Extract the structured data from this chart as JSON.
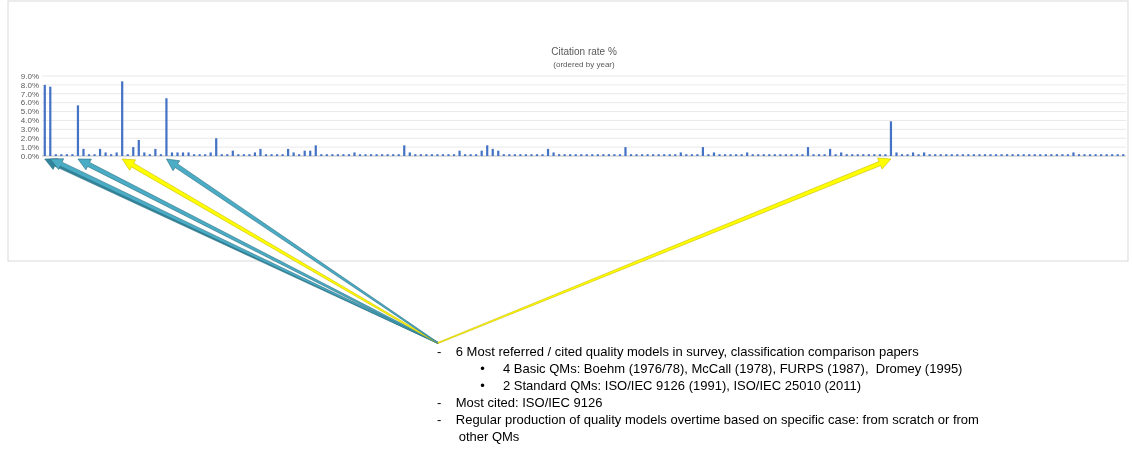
{
  "chart_data": {
    "type": "bar",
    "title": "Citation rate %",
    "subtitle": "(ordered by year)",
    "categories": [
      null,
      null,
      null,
      null,
      null,
      null,
      null,
      null,
      null,
      null,
      null,
      null,
      null,
      null,
      null,
      null,
      null,
      null,
      null,
      null,
      null,
      null,
      null,
      null,
      null,
      null,
      null,
      null,
      null,
      null,
      null,
      null,
      null,
      null,
      null,
      null,
      null,
      null,
      null,
      null,
      null,
      null,
      null,
      null,
      null,
      null,
      null,
      null,
      null,
      null,
      null,
      null,
      null,
      null,
      null,
      null,
      null,
      null,
      null,
      null,
      null,
      null,
      null,
      null,
      null,
      null,
      null,
      null,
      null,
      null,
      null,
      null,
      null,
      null,
      null,
      null,
      null,
      null,
      null,
      null,
      null,
      null,
      null,
      null,
      null,
      null,
      null,
      null,
      null,
      null,
      null,
      null,
      null,
      null,
      null,
      null,
      null,
      null,
      null,
      null,
      null,
      null,
      null,
      null,
      null,
      null,
      null,
      null,
      null,
      null,
      null,
      null,
      null,
      null,
      null,
      null,
      null,
      null,
      null,
      null,
      null,
      null,
      null,
      null,
      null,
      null,
      null,
      null,
      null,
      null,
      null,
      null,
      null,
      null,
      null,
      null,
      null,
      null,
      null,
      null,
      null,
      null,
      null,
      null,
      null,
      null,
      null,
      null,
      null,
      null,
      null,
      null,
      null,
      null,
      null,
      null,
      null,
      null,
      null,
      null,
      null,
      null,
      null,
      null,
      null,
      null,
      null,
      null,
      null,
      null,
      null,
      null,
      null,
      null,
      null,
      null,
      null,
      null,
      null,
      null,
      null,
      null,
      null,
      null,
      null,
      null,
      null,
      null,
      null,
      null,
      null,
      null,
      null,
      null,
      null,
      null
    ],
    "values": [
      8.0,
      7.8,
      0.2,
      0.2,
      0.2,
      0.2,
      5.7,
      0.8,
      0.2,
      0.2,
      0.8,
      0.4,
      0.2,
      0.4,
      8.4,
      0.2,
      1.0,
      1.8,
      0.4,
      0.2,
      0.8,
      0.2,
      6.5,
      0.4,
      0.4,
      0.4,
      0.4,
      0.2,
      0.2,
      0.2,
      0.4,
      2.0,
      0.2,
      0.2,
      0.6,
      0.2,
      0.2,
      0.2,
      0.4,
      0.8,
      0.2,
      0.2,
      0.2,
      0.2,
      0.8,
      0.4,
      0.2,
      0.6,
      0.6,
      1.2,
      0.2,
      0.2,
      0.2,
      0.2,
      0.2,
      0.2,
      0.4,
      0.2,
      0.2,
      0.2,
      0.2,
      0.2,
      0.2,
      0.2,
      0.2,
      1.2,
      0.4,
      0.2,
      0.2,
      0.2,
      0.2,
      0.2,
      0.2,
      0.2,
      0.2,
      0.6,
      0.2,
      0.2,
      0.2,
      0.6,
      1.2,
      0.8,
      0.6,
      0.2,
      0.2,
      0.2,
      0.2,
      0.2,
      0.2,
      0.2,
      0.2,
      0.8,
      0.4,
      0.2,
      0.2,
      0.2,
      0.2,
      0.2,
      0.2,
      0.2,
      0.2,
      0.2,
      0.2,
      0.2,
      0.2,
      1.0,
      0.2,
      0.2,
      0.2,
      0.2,
      0.2,
      0.2,
      0.2,
      0.2,
      0.2,
      0.4,
      0.2,
      0.2,
      0.2,
      1.0,
      0.2,
      0.4,
      0.2,
      0.2,
      0.2,
      0.2,
      0.2,
      0.4,
      0.2,
      0.2,
      0.2,
      0.2,
      0.2,
      0.2,
      0.2,
      0.2,
      0.2,
      0.2,
      1.0,
      0.2,
      0.2,
      0.2,
      0.8,
      0.2,
      0.4,
      0.2,
      0.2,
      0.2,
      0.2,
      0.2,
      0.2,
      0.2,
      0.2,
      3.9,
      0.4,
      0.2,
      0.2,
      0.4,
      0.2,
      0.4,
      0.2,
      0.2,
      0.2,
      0.2,
      0.2,
      0.2,
      0.2,
      0.2,
      0.2,
      0.2,
      0.2,
      0.2,
      0.2,
      0.2,
      0.2,
      0.2,
      0.2,
      0.2,
      0.2,
      0.2,
      0.2,
      0.2,
      0.2,
      0.2,
      0.2,
      0.2,
      0.4,
      0.2,
      0.2,
      0.2,
      0.2,
      0.2,
      0.2,
      0.2,
      0.2,
      0.2
    ],
    "color": "#4472c4",
    "ylim": [
      0,
      9
    ],
    "yticks": [
      {
        "value": 0,
        "label": "0.0%"
      },
      {
        "value": 1,
        "label": "1.0%"
      },
      {
        "value": 2,
        "label": "2.0%"
      },
      {
        "value": 3,
        "label": "3.0%"
      },
      {
        "value": 4,
        "label": "4.0%"
      },
      {
        "value": 5,
        "label": "5.0%"
      },
      {
        "value": 6,
        "label": "6.0%"
      },
      {
        "value": 7,
        "label": "7.0%"
      },
      {
        "value": 8,
        "label": "8.0%"
      },
      {
        "value": 9,
        "label": "9.0%"
      }
    ],
    "grid": "y",
    "annotations": [
      "-    6 Most referred / cited quality models in survey, classification comparison papers",
      "            •     4 Basic QMs: Boehm (1976/78), McCall (1978), FURPS (1987),  Dromey (1995)",
      "            •     2 Standard QMs: ISO/IEC 9126 (1991), ISO/IEC 25010 (2011)",
      "-    Most cited: ISO/IEC 9126",
      "-    Regular production of quality models overtime based on specific case: from scratch or from",
      "      other QMs"
    ]
  }
}
